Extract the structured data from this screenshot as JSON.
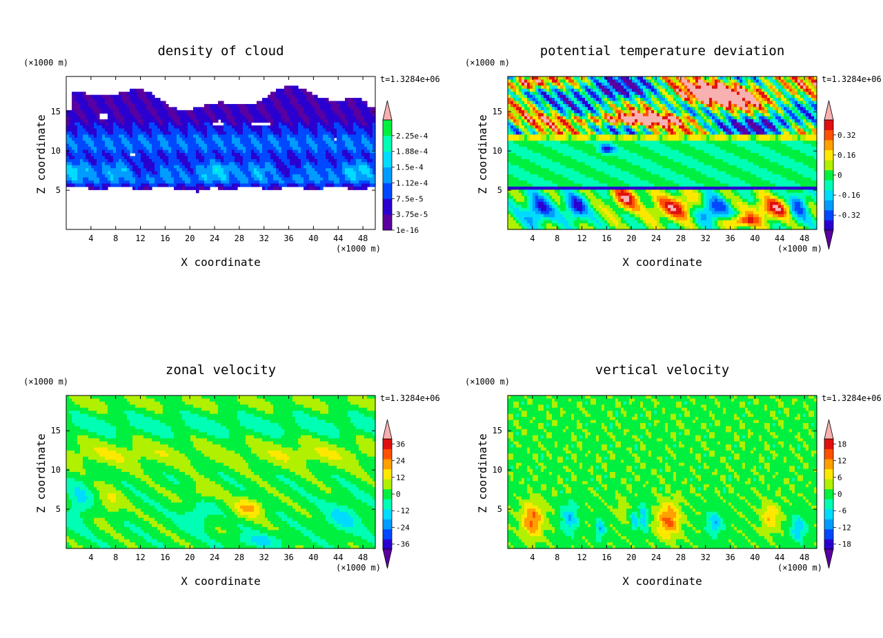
{
  "figure": {
    "panel_count": 4,
    "colormap": [
      "#5a00a0",
      "#2a00d0",
      "#0048ff",
      "#009cff",
      "#00dcff",
      "#00ffb4",
      "#00f040",
      "#b0f000",
      "#ffe800",
      "#ffa000",
      "#ff5000",
      "#e01010",
      "#f8b0b0"
    ]
  },
  "chart_data": [
    {
      "type": "heatmap",
      "title": "density of cloud",
      "xlabel": "X coordinate",
      "ylabel": "Z coordinate",
      "x_unit": "(×1000 m)",
      "y_unit": "(×1000 m)",
      "time_label": "t=1.3284e+06",
      "xlim": [
        0,
        50
      ],
      "ylim": [
        0,
        19.5
      ],
      "x_ticks": [
        "4",
        "8",
        "12",
        "16",
        "20",
        "24",
        "28",
        "32",
        "36",
        "40",
        "44",
        "48"
      ],
      "y_ticks": [
        "5",
        "10",
        "15"
      ],
      "colorbar": {
        "labels": [
          "1e-16",
          "3.75e-5",
          "7.5e-5",
          "1.12e-4",
          "1.5e-4",
          "1.88e-4",
          "2.25e-4"
        ],
        "extend_low": false,
        "extend_high": true
      },
      "field": "cloud"
    },
    {
      "type": "heatmap",
      "title": "potential temperature deviation",
      "xlabel": "X coordinate",
      "ylabel": "Z coordinate",
      "x_unit": "(×1000 m)",
      "y_unit": "(×1000 m)",
      "time_label": "t=1.3284e+06",
      "xlim": [
        0,
        50
      ],
      "ylim": [
        0,
        19.5
      ],
      "x_ticks": [
        "4",
        "8",
        "12",
        "16",
        "20",
        "24",
        "28",
        "32",
        "36",
        "40",
        "44",
        "48"
      ],
      "y_ticks": [
        "5",
        "10",
        "15"
      ],
      "colorbar": {
        "labels": [
          "-0.32",
          "-0.16",
          "0",
          "0.16",
          "0.32"
        ],
        "extend_low": true,
        "extend_high": true
      },
      "field": "theta"
    },
    {
      "type": "heatmap",
      "title": "zonal velocity",
      "xlabel": "X coordinate",
      "ylabel": "Z coordinate",
      "x_unit": "(×1000 m)",
      "y_unit": "(×1000 m)",
      "time_label": "t=1.3284e+06",
      "xlim": [
        0,
        50
      ],
      "ylim": [
        0,
        19.5
      ],
      "x_ticks": [
        "4",
        "8",
        "12",
        "16",
        "20",
        "24",
        "28",
        "32",
        "36",
        "40",
        "44",
        "48"
      ],
      "y_ticks": [
        "5",
        "10",
        "15"
      ],
      "colorbar": {
        "labels": [
          "-36",
          "-24",
          "-12",
          "0",
          "12",
          "24",
          "36"
        ],
        "extend_low": true,
        "extend_high": true
      },
      "field": "zonal"
    },
    {
      "type": "heatmap",
      "title": "vertical velocity",
      "xlabel": "X coordinate",
      "ylabel": "Z coordinate",
      "x_unit": "(×1000 m)",
      "y_unit": "(×1000 m)",
      "time_label": "t=1.3284e+06",
      "xlim": [
        0,
        50
      ],
      "ylim": [
        0,
        19.5
      ],
      "x_ticks": [
        "4",
        "8",
        "12",
        "16",
        "20",
        "24",
        "28",
        "32",
        "36",
        "40",
        "44",
        "48"
      ],
      "y_ticks": [
        "5",
        "10",
        "15"
      ],
      "colorbar": {
        "labels": [
          "-18",
          "-12",
          "-6",
          "0",
          "6",
          "12",
          "18"
        ],
        "extend_low": true,
        "extend_high": true
      },
      "field": "vertical"
    }
  ]
}
